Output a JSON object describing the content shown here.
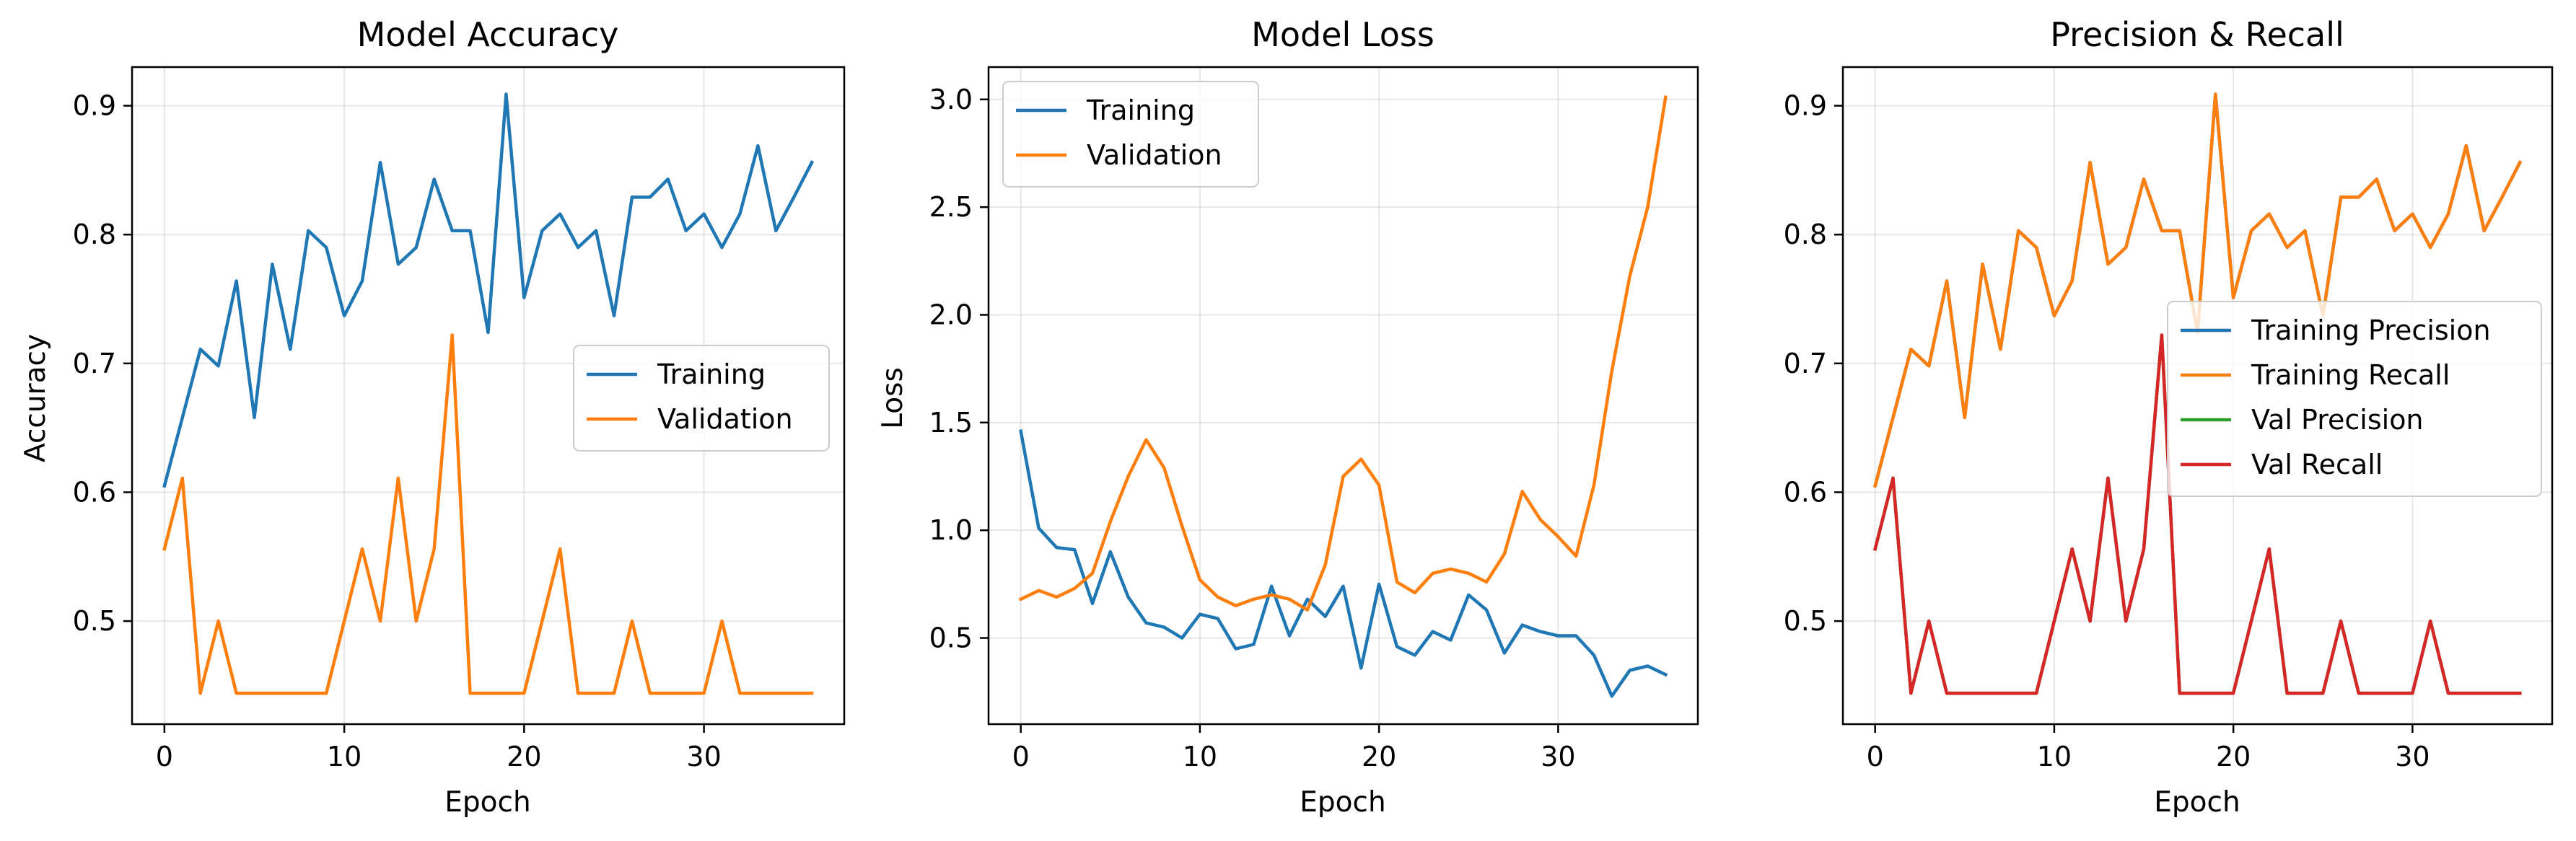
{
  "chart_data": [
    {
      "type": "line",
      "title": "Model Accuracy",
      "xlabel": "Epoch",
      "ylabel": "Accuracy",
      "xlim": [
        -1.8,
        37.8
      ],
      "ylim": [
        0.42,
        0.93
      ],
      "xticks": [
        0,
        10,
        20,
        30
      ],
      "yticks": [
        0.5,
        0.6,
        0.7,
        0.8,
        0.9
      ],
      "grid": true,
      "legend": "center-right",
      "x": [
        0,
        1,
        2,
        3,
        4,
        5,
        6,
        7,
        8,
        9,
        10,
        11,
        12,
        13,
        14,
        15,
        16,
        17,
        18,
        19,
        20,
        21,
        22,
        23,
        24,
        25,
        26,
        27,
        28,
        29,
        30,
        31,
        32,
        33,
        34,
        35,
        36
      ],
      "series": [
        {
          "name": "Training",
          "color": "#1f77b4",
          "values": [
            0.605,
            0.658,
            0.711,
            0.698,
            0.764,
            0.658,
            0.777,
            0.711,
            0.803,
            0.79,
            0.737,
            0.764,
            0.856,
            0.777,
            0.79,
            0.843,
            0.803,
            0.803,
            0.724,
            0.909,
            0.751,
            0.803,
            0.816,
            0.79,
            0.803,
            0.737,
            0.829,
            0.829,
            0.843,
            0.803,
            0.816,
            0.79,
            0.816,
            0.869,
            0.803,
            0.829,
            0.856
          ]
        },
        {
          "name": "Validation",
          "color": "#ff7f0e",
          "values": [
            0.556,
            0.611,
            0.444,
            0.5,
            0.444,
            0.444,
            0.444,
            0.444,
            0.444,
            0.444,
            0.5,
            0.556,
            0.5,
            0.611,
            0.5,
            0.556,
            0.722,
            0.444,
            0.444,
            0.444,
            0.444,
            0.5,
            0.556,
            0.444,
            0.444,
            0.444,
            0.5,
            0.444,
            0.444,
            0.444,
            0.444,
            0.5,
            0.444,
            0.444,
            0.444,
            0.444,
            0.444
          ]
        }
      ]
    },
    {
      "type": "line",
      "title": "Model Loss",
      "xlabel": "Epoch",
      "ylabel": "Loss",
      "xlim": [
        -1.8,
        37.8
      ],
      "ylim": [
        0.1,
        3.15
      ],
      "xticks": [
        0,
        10,
        20,
        30
      ],
      "yticks": [
        0.5,
        1.0,
        1.5,
        2.0,
        2.5,
        3.0
      ],
      "ytick_labels": [
        "0.5",
        "1.0",
        "1.5",
        "2.0",
        "2.5",
        "3.0"
      ],
      "grid": true,
      "legend": "top-left",
      "x": [
        0,
        1,
        2,
        3,
        4,
        5,
        6,
        7,
        8,
        9,
        10,
        11,
        12,
        13,
        14,
        15,
        16,
        17,
        18,
        19,
        20,
        21,
        22,
        23,
        24,
        25,
        26,
        27,
        28,
        29,
        30,
        31,
        32,
        33,
        34,
        35,
        36
      ],
      "series": [
        {
          "name": "Training",
          "color": "#1f77b4",
          "values": [
            1.46,
            1.01,
            0.92,
            0.91,
            0.66,
            0.9,
            0.69,
            0.57,
            0.55,
            0.5,
            0.61,
            0.59,
            0.45,
            0.47,
            0.74,
            0.51,
            0.68,
            0.6,
            0.74,
            0.36,
            0.75,
            0.46,
            0.42,
            0.53,
            0.49,
            0.7,
            0.63,
            0.43,
            0.56,
            0.53,
            0.51,
            0.51,
            0.42,
            0.23,
            0.35,
            0.37,
            0.33
          ]
        },
        {
          "name": "Validation",
          "color": "#ff7f0e",
          "values": [
            0.68,
            0.72,
            0.69,
            0.73,
            0.8,
            1.04,
            1.25,
            1.42,
            1.29,
            1.02,
            0.77,
            0.69,
            0.65,
            0.68,
            0.7,
            0.68,
            0.63,
            0.84,
            1.25,
            1.33,
            1.21,
            0.76,
            0.71,
            0.8,
            0.82,
            0.8,
            0.76,
            0.89,
            1.18,
            1.05,
            0.97,
            0.88,
            1.21,
            1.74,
            2.18,
            2.5,
            3.01
          ]
        }
      ]
    },
    {
      "type": "line",
      "title": "Precision & Recall",
      "xlabel": "Epoch",
      "ylabel": "",
      "xlim": [
        -1.8,
        37.8
      ],
      "ylim": [
        0.42,
        0.93
      ],
      "xticks": [
        0,
        10,
        20,
        30
      ],
      "yticks": [
        0.5,
        0.6,
        0.7,
        0.8,
        0.9
      ],
      "grid": true,
      "legend": "center-right",
      "x": [
        0,
        1,
        2,
        3,
        4,
        5,
        6,
        7,
        8,
        9,
        10,
        11,
        12,
        13,
        14,
        15,
        16,
        17,
        18,
        19,
        20,
        21,
        22,
        23,
        24,
        25,
        26,
        27,
        28,
        29,
        30,
        31,
        32,
        33,
        34,
        35,
        36
      ],
      "series": [
        {
          "name": "Training Precision",
          "color": "#1f77b4",
          "values": [
            0.605,
            0.658,
            0.711,
            0.698,
            0.764,
            0.658,
            0.777,
            0.711,
            0.803,
            0.79,
            0.737,
            0.764,
            0.856,
            0.777,
            0.79,
            0.843,
            0.803,
            0.803,
            0.724,
            0.909,
            0.751,
            0.803,
            0.816,
            0.79,
            0.803,
            0.737,
            0.829,
            0.829,
            0.843,
            0.803,
            0.816,
            0.79,
            0.816,
            0.869,
            0.803,
            0.829,
            0.856
          ]
        },
        {
          "name": "Training Recall",
          "color": "#ff7f0e",
          "values": [
            0.605,
            0.658,
            0.711,
            0.698,
            0.764,
            0.658,
            0.777,
            0.711,
            0.803,
            0.79,
            0.737,
            0.764,
            0.856,
            0.777,
            0.79,
            0.843,
            0.803,
            0.803,
            0.724,
            0.909,
            0.751,
            0.803,
            0.816,
            0.79,
            0.803,
            0.737,
            0.829,
            0.829,
            0.843,
            0.803,
            0.816,
            0.79,
            0.816,
            0.869,
            0.803,
            0.829,
            0.856
          ]
        },
        {
          "name": "Val Precision",
          "color": "#2ca02c",
          "values": [
            0.556,
            0.611,
            0.444,
            0.5,
            0.444,
            0.444,
            0.444,
            0.444,
            0.444,
            0.444,
            0.5,
            0.556,
            0.5,
            0.611,
            0.5,
            0.556,
            0.722,
            0.444,
            0.444,
            0.444,
            0.444,
            0.5,
            0.556,
            0.444,
            0.444,
            0.444,
            0.5,
            0.444,
            0.444,
            0.444,
            0.444,
            0.5,
            0.444,
            0.444,
            0.444,
            0.444,
            0.444
          ]
        },
        {
          "name": "Val Recall",
          "color": "#d62728",
          "values": [
            0.556,
            0.611,
            0.444,
            0.5,
            0.444,
            0.444,
            0.444,
            0.444,
            0.444,
            0.444,
            0.5,
            0.556,
            0.5,
            0.611,
            0.5,
            0.556,
            0.722,
            0.444,
            0.444,
            0.444,
            0.444,
            0.5,
            0.556,
            0.444,
            0.444,
            0.444,
            0.5,
            0.444,
            0.444,
            0.444,
            0.444,
            0.5,
            0.444,
            0.444,
            0.444,
            0.444,
            0.444
          ]
        }
      ]
    }
  ]
}
